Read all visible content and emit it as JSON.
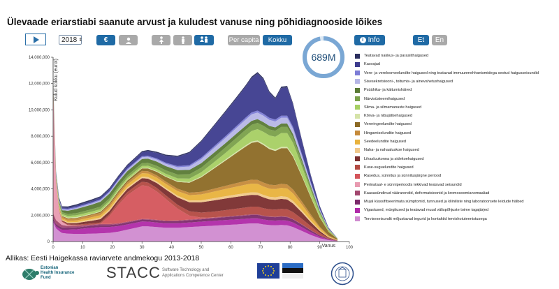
{
  "title": "Ülevaade eriarstiabi saanute arvust ja kuludest vanuse ning põhidiagnooside lõikes",
  "controls": {
    "year": "2018",
    "euro_symbol": "€",
    "per_capita": "Per capita",
    "total": "Kokku",
    "info": "Info",
    "lang_et": "Et",
    "lang_en": "En"
  },
  "total_badge": "689M",
  "total_fraction": 0.97,
  "source": "Allikas: Eesti Haigekassa raviarvete andmekogu 2013-2018",
  "logos": {
    "ehif": [
      "Estonian",
      "Health Insurance",
      "Fund"
    ],
    "stacc": "STACC",
    "stacc_sub": [
      "Software Technology and",
      "Applications Competence Center"
    ]
  },
  "colors": {
    "accent": "#1f6aa5",
    "badge_ring": "#7aa7d4"
  },
  "chart_data": {
    "type": "area",
    "stacked": true,
    "ylabel": "Kulud kokku (eurot)",
    "xlabel": "Vanus",
    "xlim": [
      0,
      100
    ],
    "ylim": [
      0,
      14000000
    ],
    "xticks": [
      0,
      10,
      20,
      30,
      40,
      50,
      60,
      70,
      80,
      90,
      100
    ],
    "yticks": [
      0,
      2000000,
      4000000,
      6000000,
      8000000,
      10000000,
      12000000,
      14000000
    ],
    "ytick_labels": [
      "0",
      "2,000,000",
      "4,000,000",
      "6,000,000",
      "8,000,000",
      "10,000,000",
      "12,000,000",
      "14,000,000"
    ],
    "x": [
      0,
      1,
      2,
      3,
      5,
      8,
      10,
      13,
      16,
      19,
      22,
      25,
      28,
      30,
      32,
      35,
      38,
      42,
      46,
      50,
      54,
      58,
      62,
      65,
      67,
      69,
      71,
      73,
      75,
      77,
      79,
      81,
      84,
      87,
      90,
      93,
      96
    ],
    "series": [
      {
        "name": "Terviseseisundit mõjustavad tegurid ja kontaktid tervishoiuteenistusega",
        "color": "#d08bd0",
        "values": [
          1500000,
          1000000,
          800000,
          650000,
          600000,
          580000,
          580000,
          600000,
          620000,
          660000,
          750000,
          900000,
          1050000,
          1150000,
          1150000,
          1100000,
          1050000,
          1050000,
          1100000,
          1150000,
          1200000,
          1250000,
          1300000,
          1350000,
          1380000,
          1380000,
          1300000,
          1250000,
          1230000,
          1260000,
          1230000,
          1100000,
          800000,
          500000,
          250000,
          100000,
          30000
        ]
      },
      {
        "name": "Vigastused, mürgitused ja teatavad muud välispõhjuste toime tagajärjed",
        "color": "#b02aa8",
        "values": [
          100000,
          150000,
          200000,
          250000,
          300000,
          350000,
          400000,
          450000,
          480000,
          450000,
          420000,
          400000,
          380000,
          370000,
          360000,
          350000,
          340000,
          340000,
          350000,
          360000,
          370000,
          380000,
          380000,
          380000,
          380000,
          380000,
          370000,
          360000,
          360000,
          360000,
          360000,
          340000,
          280000,
          200000,
          120000,
          50000,
          15000
        ]
      },
      {
        "name": "Mujal klassifitseerimata sümptomid, tunnused ja kliiniliste ning laboratoorsete leidude hälbed",
        "color": "#7b2a6a",
        "values": [
          150000,
          180000,
          180000,
          170000,
          160000,
          150000,
          150000,
          150000,
          150000,
          150000,
          150000,
          150000,
          150000,
          150000,
          150000,
          150000,
          150000,
          160000,
          170000,
          180000,
          200000,
          220000,
          240000,
          250000,
          260000,
          260000,
          260000,
          260000,
          260000,
          260000,
          260000,
          240000,
          200000,
          150000,
          90000,
          40000,
          10000
        ]
      },
      {
        "name": "Kaasasündinud väärarendid, deformatsioonid ja kromosoomianomaaliad",
        "color": "#a2466e",
        "values": [
          400000,
          300000,
          250000,
          180000,
          130000,
          110000,
          100000,
          90000,
          80000,
          70000,
          60000,
          55000,
          50000,
          50000,
          50000,
          50000,
          50000,
          50000,
          50000,
          50000,
          50000,
          50000,
          50000,
          50000,
          50000,
          50000,
          40000,
          40000,
          40000,
          40000,
          40000,
          30000,
          20000,
          15000,
          10000,
          5000,
          0
        ]
      },
      {
        "name": "Perinataal- e sünniperioodis tekkivad teatavad seisundid",
        "color": "#e89ab0",
        "values": [
          9500000,
          2800000,
          900000,
          250000,
          50000,
          20000,
          10000,
          0,
          0,
          0,
          0,
          0,
          0,
          0,
          0,
          0,
          0,
          0,
          0,
          0,
          0,
          0,
          0,
          0,
          0,
          0,
          0,
          0,
          0,
          0,
          0,
          0,
          0,
          0,
          0,
          0,
          0
        ]
      },
      {
        "name": "Rasedus, sünnitus ja sünnitusjärgne periood",
        "color": "#d4555b",
        "values": [
          0,
          0,
          0,
          0,
          0,
          0,
          0,
          0,
          20000,
          600000,
          1400000,
          2000000,
          2350000,
          2550000,
          2500000,
          2150000,
          1650000,
          900000,
          300000,
          80000,
          20000,
          0,
          0,
          0,
          0,
          0,
          0,
          0,
          0,
          0,
          0,
          0,
          0,
          0,
          0,
          0,
          0
        ]
      },
      {
        "name": "Kuse-suguelundite haigused",
        "color": "#b34a42",
        "values": [
          60000,
          60000,
          60000,
          60000,
          70000,
          70000,
          80000,
          90000,
          100000,
          150000,
          200000,
          240000,
          260000,
          270000,
          270000,
          270000,
          270000,
          290000,
          330000,
          380000,
          430000,
          480000,
          530000,
          560000,
          580000,
          580000,
          560000,
          540000,
          540000,
          560000,
          560000,
          520000,
          420000,
          300000,
          180000,
          70000,
          20000
        ]
      },
      {
        "name": "Lihasluukonna ja sidekoehaigused",
        "color": "#7a2e2e",
        "values": [
          20000,
          30000,
          40000,
          50000,
          80000,
          120000,
          160000,
          200000,
          250000,
          230000,
          220000,
          230000,
          250000,
          270000,
          300000,
          370000,
          450000,
          560000,
          680000,
          780000,
          850000,
          880000,
          900000,
          900000,
          900000,
          880000,
          820000,
          760000,
          740000,
          760000,
          740000,
          660000,
          480000,
          300000,
          150000,
          50000,
          10000
        ]
      },
      {
        "name": "Naha- ja nahaaluskoe haigused",
        "color": "#f0c88a",
        "values": [
          50000,
          60000,
          60000,
          60000,
          70000,
          80000,
          90000,
          110000,
          130000,
          130000,
          120000,
          120000,
          120000,
          120000,
          120000,
          120000,
          120000,
          130000,
          140000,
          150000,
          160000,
          170000,
          180000,
          190000,
          190000,
          190000,
          190000,
          190000,
          190000,
          200000,
          200000,
          190000,
          160000,
          120000,
          70000,
          30000,
          10000
        ]
      },
      {
        "name": "Seedeelundite haigused",
        "color": "#e8b23c",
        "values": [
          80000,
          80000,
          90000,
          100000,
          110000,
          120000,
          130000,
          150000,
          170000,
          180000,
          200000,
          220000,
          240000,
          260000,
          270000,
          290000,
          310000,
          350000,
          400000,
          450000,
          500000,
          550000,
          600000,
          640000,
          660000,
          660000,
          640000,
          620000,
          620000,
          640000,
          640000,
          580000,
          440000,
          300000,
          170000,
          70000,
          20000
        ]
      },
      {
        "name": "Hingamiselundite haigused",
        "color": "#c58a3a",
        "values": [
          60000,
          80000,
          100000,
          120000,
          140000,
          150000,
          160000,
          170000,
          180000,
          180000,
          180000,
          170000,
          170000,
          170000,
          170000,
          170000,
          170000,
          180000,
          190000,
          200000,
          220000,
          240000,
          270000,
          290000,
          300000,
          300000,
          300000,
          300000,
          300000,
          310000,
          310000,
          290000,
          230000,
          160000,
          90000,
          40000,
          10000
        ]
      },
      {
        "name": "Vereringeelundite haigused",
        "color": "#8c6a25",
        "values": [
          100000,
          80000,
          60000,
          50000,
          50000,
          50000,
          50000,
          60000,
          80000,
          100000,
          120000,
          140000,
          170000,
          190000,
          220000,
          280000,
          360000,
          520000,
          760000,
          1100000,
          1500000,
          1900000,
          2300000,
          2600000,
          2800000,
          2900000,
          2850000,
          2700000,
          2600000,
          2700000,
          2750000,
          2500000,
          1900000,
          1300000,
          700000,
          280000,
          70000
        ]
      },
      {
        "name": "Kõrva- ja nibujätkehaigused",
        "color": "#d5e3a8",
        "values": [
          20000,
          30000,
          40000,
          50000,
          60000,
          60000,
          50000,
          40000,
          40000,
          40000,
          40000,
          40000,
          40000,
          40000,
          40000,
          40000,
          40000,
          50000,
          50000,
          60000,
          70000,
          80000,
          90000,
          100000,
          100000,
          100000,
          100000,
          100000,
          100000,
          100000,
          100000,
          90000,
          70000,
          50000,
          30000,
          10000,
          0
        ]
      },
      {
        "name": "Silma- ja silmamanuste haigused",
        "color": "#a6cf63",
        "values": [
          40000,
          60000,
          80000,
          100000,
          120000,
          140000,
          150000,
          160000,
          160000,
          150000,
          150000,
          150000,
          150000,
          150000,
          160000,
          170000,
          190000,
          220000,
          260000,
          320000,
          400000,
          500000,
          620000,
          720000,
          800000,
          860000,
          900000,
          940000,
          980000,
          1050000,
          1050000,
          950000,
          700000,
          450000,
          250000,
          90000,
          20000
        ]
      },
      {
        "name": "Närvisüsteemihaigused",
        "color": "#7aa04a",
        "values": [
          100000,
          120000,
          130000,
          140000,
          150000,
          160000,
          170000,
          180000,
          190000,
          190000,
          190000,
          190000,
          200000,
          210000,
          220000,
          240000,
          260000,
          290000,
          320000,
          350000,
          380000,
          410000,
          440000,
          460000,
          470000,
          470000,
          460000,
          450000,
          450000,
          460000,
          460000,
          420000,
          320000,
          220000,
          130000,
          50000,
          10000
        ]
      },
      {
        "name": "Psüühika- ja käitumishäired",
        "color": "#5a7a35",
        "values": [
          50000,
          80000,
          100000,
          150000,
          250000,
          320000,
          330000,
          350000,
          380000,
          360000,
          340000,
          330000,
          320000,
          320000,
          320000,
          320000,
          320000,
          330000,
          340000,
          340000,
          340000,
          330000,
          320000,
          310000,
          300000,
          290000,
          280000,
          270000,
          260000,
          260000,
          260000,
          240000,
          190000,
          140000,
          80000,
          30000,
          10000
        ]
      },
      {
        "name": "Sisesekretsiooni-, toitumis- ja ainevahetushaigused",
        "color": "#b6b6e6",
        "values": [
          30000,
          40000,
          50000,
          60000,
          70000,
          70000,
          80000,
          90000,
          100000,
          100000,
          100000,
          110000,
          120000,
          130000,
          140000,
          160000,
          180000,
          220000,
          260000,
          310000,
          360000,
          400000,
          440000,
          470000,
          490000,
          500000,
          490000,
          470000,
          450000,
          450000,
          450000,
          410000,
          300000,
          200000,
          110000,
          40000,
          10000
        ]
      },
      {
        "name": "Vere- ja vereloomeelundite haigused ning teatavad immuunmehhanismidega seotud haigusseisundid",
        "color": "#7c7cd6",
        "values": [
          30000,
          50000,
          60000,
          70000,
          80000,
          80000,
          80000,
          80000,
          80000,
          80000,
          80000,
          80000,
          80000,
          80000,
          80000,
          80000,
          80000,
          90000,
          100000,
          110000,
          120000,
          130000,
          140000,
          150000,
          150000,
          150000,
          150000,
          150000,
          150000,
          150000,
          150000,
          140000,
          110000,
          80000,
          50000,
          20000,
          0
        ]
      },
      {
        "name": "Kasvajad",
        "color": "#3d3c8e",
        "values": [
          50000,
          50000,
          60000,
          70000,
          80000,
          100000,
          110000,
          120000,
          140000,
          160000,
          190000,
          220000,
          260000,
          300000,
          340000,
          420000,
          520000,
          700000,
          920000,
          1200000,
          1500000,
          1800000,
          2100000,
          2350000,
          2600000,
          2800000,
          2600000,
          1900000,
          1550000,
          2100000,
          2150000,
          1700000,
          1000000,
          500000,
          200000,
          60000,
          10000
        ]
      },
      {
        "name": "Teatavad nakkus- ja parasiithaigused",
        "color": "#2b2e5e",
        "values": [
          60000,
          80000,
          90000,
          100000,
          100000,
          100000,
          100000,
          100000,
          90000,
          90000,
          90000,
          90000,
          90000,
          90000,
          90000,
          90000,
          90000,
          90000,
          90000,
          100000,
          100000,
          110000,
          110000,
          110000,
          120000,
          120000,
          110000,
          110000,
          110000,
          110000,
          110000,
          100000,
          80000,
          60000,
          40000,
          20000,
          0
        ]
      }
    ]
  }
}
